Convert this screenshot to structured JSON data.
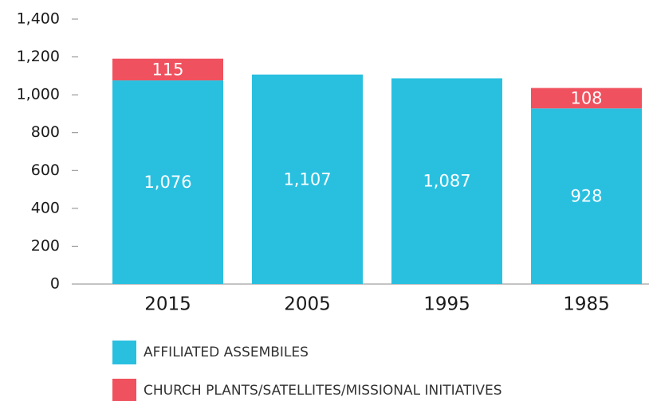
{
  "chart_data": {
    "type": "stacked_bar",
    "categories": [
      "2015",
      "2005",
      "1995",
      "1985"
    ],
    "series": [
      {
        "name": "AFFILIATED ASSEMBILES",
        "color": "#29c0e0",
        "values": [
          1076,
          1107,
          1087,
          928
        ],
        "value_labels": [
          "1,076",
          "1,107",
          "1,087",
          "928"
        ]
      },
      {
        "name": "CHURCH PLANTS/SATELLITES/MISSIONAL INITIATIVES",
        "color": "#f0515e",
        "values": [
          115,
          null,
          null,
          108
        ]
      }
    ],
    "ylim": [
      0,
      1400
    ],
    "yticks": [
      0,
      200,
      400,
      600,
      800,
      {
        "value": 1000,
        "label": "1,000"
      },
      {
        "value": 1200,
        "label": "1,200"
      },
      {
        "value": 1400,
        "label": "1,400"
      }
    ]
  }
}
